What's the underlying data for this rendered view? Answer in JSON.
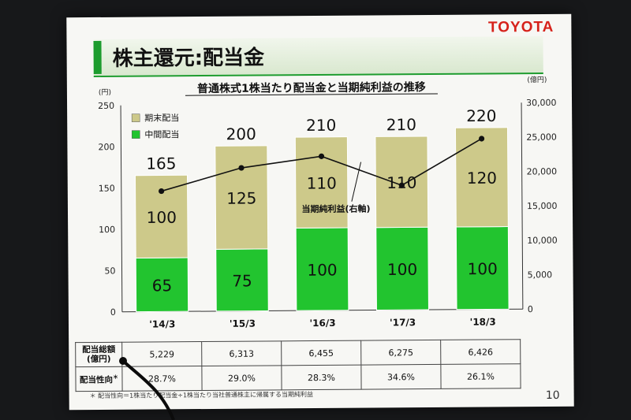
{
  "logo": "TOYOTA",
  "slide_title": "株主還元:配当金",
  "page_number": "10",
  "footnote": "＊ 配当性向＝1株当たり配当金÷1株当たり当社普通株主に帰属する当期純利益",
  "colors": {
    "year_end": "#cdc98a",
    "interim": "#22c42f",
    "accent": "#1d9c2e",
    "logo": "#d6221b",
    "line": "#111111"
  },
  "table": {
    "row1_label_a": "配当総額",
    "row1_label_b": "(億円)",
    "row2_label": "配当性向",
    "row2_label_mark": "＊",
    "totals": [
      "5,229",
      "6,313",
      "6,455",
      "6,275",
      "6,426"
    ],
    "payout": [
      "28.7%",
      "29.0%",
      "28.3%",
      "34.6%",
      "26.1%"
    ]
  },
  "chart_data": {
    "type": "bar",
    "title": "普通株式1株当たり配当金と当期純利益の推移",
    "categories": [
      "'14/3",
      "'15/3",
      "'16/3",
      "'17/3",
      "'18/3"
    ],
    "series": [
      {
        "name": "中間配当",
        "values": [
          65,
          75,
          100,
          100,
          100
        ],
        "axis": "left",
        "color": "#22c42f"
      },
      {
        "name": "期末配当",
        "values": [
          100,
          125,
          110,
          110,
          120
        ],
        "axis": "left",
        "color": "#cdc98a"
      },
      {
        "name": "当期純利益(右軸)",
        "type": "line",
        "axis": "right",
        "values": [
          17500,
          20800,
          22400,
          18100,
          24800
        ]
      }
    ],
    "totals": [
      165,
      200,
      210,
      210,
      220
    ],
    "y_left": {
      "unit": "(円)",
      "range": [
        0,
        250
      ],
      "ticks": [
        "0",
        "50",
        "100",
        "150",
        "200",
        "250"
      ]
    },
    "y_right": {
      "unit": "(億円)",
      "range": [
        0,
        30000
      ],
      "ticks": [
        "0",
        "5,000",
        "10,000",
        "15,000",
        "20,000",
        "25,000",
        "30,000"
      ]
    },
    "legend": [
      "期末配当",
      "中間配当"
    ],
    "legend_position": "top-left",
    "line_annotation": "当期純利益(右軸)",
    "stacked": true,
    "grid": false
  }
}
